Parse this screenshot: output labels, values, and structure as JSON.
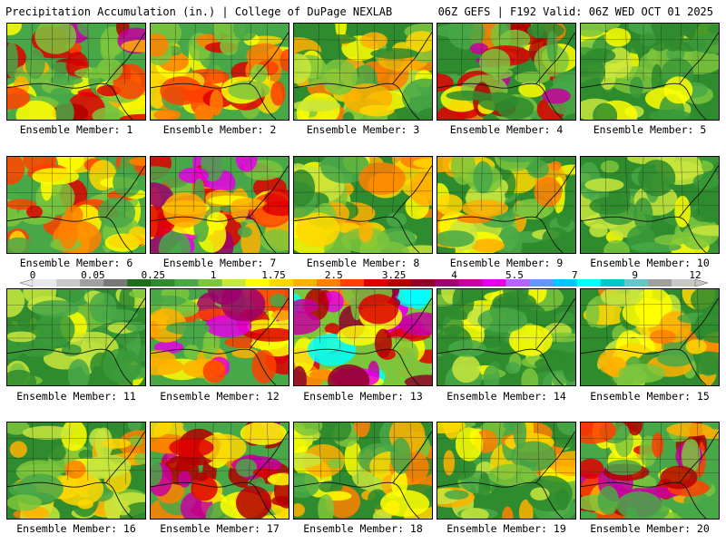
{
  "header": {
    "left": "Precipitation Accumulation (in.) | College of DuPage NEXLAB",
    "right": "06Z GEFS | F192 Valid: 06Z WED OCT 01 2025"
  },
  "members": [
    {
      "label": "Ensemble Member: 1",
      "hue": "wet-south"
    },
    {
      "label": "Ensemble Member: 2",
      "hue": "wet-north"
    },
    {
      "label": "Ensemble Member: 3",
      "hue": "moderate"
    },
    {
      "label": "Ensemble Member: 4",
      "hue": "wet-florida"
    },
    {
      "label": "Ensemble Member: 5",
      "hue": "dry"
    },
    {
      "label": "Ensemble Member: 6",
      "hue": "wet-north"
    },
    {
      "label": "Ensemble Member: 7",
      "hue": "wet-west"
    },
    {
      "label": "Ensemble Member: 8",
      "hue": "moderate"
    },
    {
      "label": "Ensemble Member: 9",
      "hue": "moderate"
    },
    {
      "label": "Ensemble Member: 10",
      "hue": "dry"
    },
    {
      "label": "Ensemble Member: 11",
      "hue": "dry"
    },
    {
      "label": "Ensemble Member: 12",
      "hue": "wet-west"
    },
    {
      "label": "Ensemble Member: 13",
      "hue": "very-wet"
    },
    {
      "label": "Ensemble Member: 14",
      "hue": "dry"
    },
    {
      "label": "Ensemble Member: 15",
      "hue": "moderate"
    },
    {
      "label": "Ensemble Member: 16",
      "hue": "moderate"
    },
    {
      "label": "Ensemble Member: 17",
      "hue": "wet-center"
    },
    {
      "label": "Ensemble Member: 18",
      "hue": "moderate"
    },
    {
      "label": "Ensemble Member: 19",
      "hue": "moderate"
    },
    {
      "label": "Ensemble Member: 20",
      "hue": "wet-south"
    }
  ],
  "legend": {
    "labels": [
      "0",
      "0.05",
      "0.25",
      "1",
      "1.75",
      "2.5",
      "3.25",
      "4",
      "5.5",
      "7",
      "9",
      "12"
    ],
    "colors": [
      "#e8e8e8",
      "#c8c8c8",
      "#a0a0a0",
      "#787878",
      "#1e6e1e",
      "#2e8b2e",
      "#48a848",
      "#7cc63c",
      "#c8e63c",
      "#ffff00",
      "#ffd700",
      "#ffb000",
      "#ff8000",
      "#ff4000",
      "#e00000",
      "#b40000",
      "#900028",
      "#a0006e",
      "#c800a0",
      "#e600e6",
      "#b464ff",
      "#6496ff",
      "#00c8ff",
      "#00ffff",
      "#00c8c8",
      "#64c8c8",
      "#a0a0a0",
      "#c8c8c8"
    ]
  }
}
